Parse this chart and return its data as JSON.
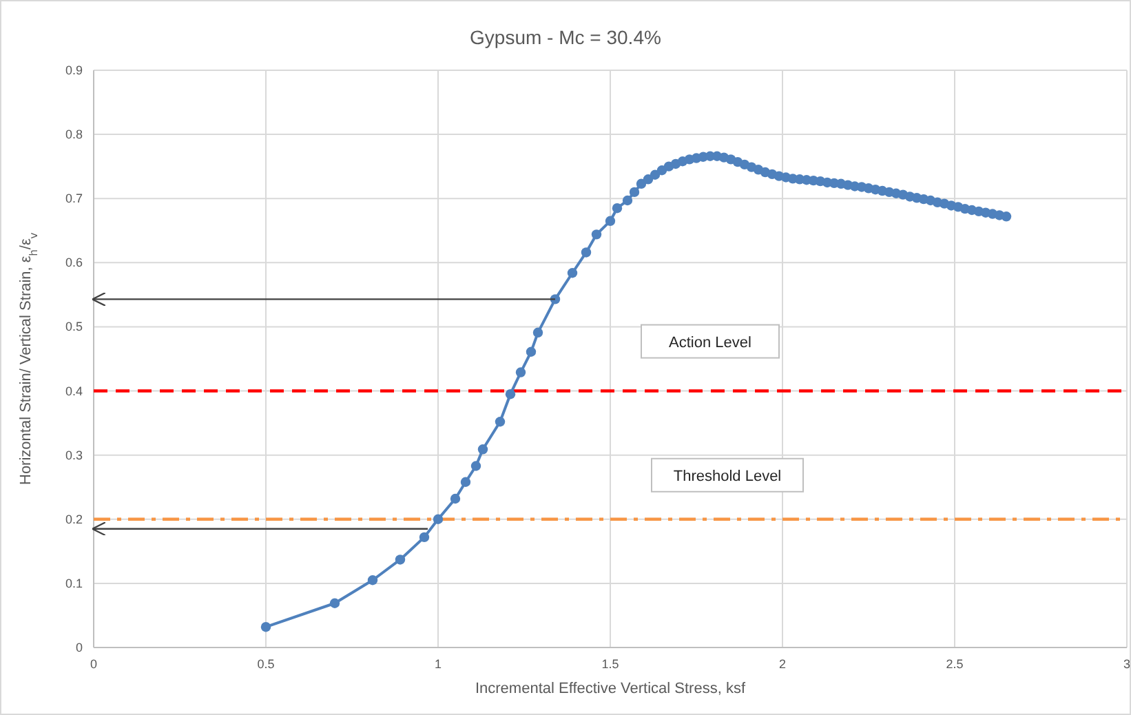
{
  "chart_data": {
    "type": "line",
    "title": "Gypsum - Mc = 30.4%",
    "xlabel": "Incremental Effective Vertical Stress, ksf",
    "ylabel": "Horizontal Strain/ Vertical Strain, ε$_{h}$/ε$_{v}$",
    "xlim": [
      0,
      3
    ],
    "xticks": [
      0,
      0.5,
      1,
      1.5,
      2,
      2.5,
      3
    ],
    "ylim": [
      0,
      0.9
    ],
    "yticks": [
      0,
      0.1,
      0.2,
      0.3,
      0.4,
      0.5,
      0.6,
      0.7,
      0.8,
      0.9
    ],
    "grid": true,
    "marker": "circle",
    "line_style": "solid",
    "series": [
      {
        "color": "#4f81bd",
        "x": [
          0.5,
          0.7,
          0.81,
          0.89,
          0.96,
          1.0,
          1.05,
          1.08,
          1.11,
          1.13,
          1.18,
          1.21,
          1.24,
          1.27,
          1.29,
          1.34,
          1.39,
          1.43,
          1.46,
          1.5,
          1.52,
          1.55,
          1.57,
          1.59,
          1.61,
          1.63,
          1.65,
          1.67,
          1.69,
          1.71,
          1.73,
          1.75,
          1.77,
          1.79,
          1.81,
          1.83,
          1.85,
          1.87,
          1.89,
          1.91,
          1.93,
          1.95,
          1.97,
          1.99,
          2.01,
          2.03,
          2.05,
          2.07,
          2.09,
          2.11,
          2.13,
          2.15,
          2.17,
          2.19,
          2.21,
          2.23,
          2.25,
          2.27,
          2.29,
          2.31,
          2.33,
          2.35,
          2.37,
          2.39,
          2.41,
          2.43,
          2.45,
          2.47,
          2.49,
          2.51,
          2.53,
          2.55,
          2.57,
          2.59,
          2.61,
          2.63,
          2.65
        ],
        "values": [
          0.032,
          0.069,
          0.105,
          0.137,
          0.172,
          0.2,
          0.232,
          0.258,
          0.283,
          0.309,
          0.352,
          0.395,
          0.429,
          0.461,
          0.491,
          0.543,
          0.584,
          0.616,
          0.644,
          0.665,
          0.685,
          0.697,
          0.71,
          0.723,
          0.73,
          0.737,
          0.744,
          0.75,
          0.754,
          0.758,
          0.761,
          0.763,
          0.765,
          0.766,
          0.766,
          0.764,
          0.761,
          0.757,
          0.753,
          0.749,
          0.745,
          0.741,
          0.738,
          0.735,
          0.733,
          0.731,
          0.73,
          0.729,
          0.728,
          0.727,
          0.725,
          0.724,
          0.723,
          0.721,
          0.719,
          0.718,
          0.716,
          0.714,
          0.712,
          0.71,
          0.708,
          0.706,
          0.703,
          0.701,
          0.699,
          0.697,
          0.694,
          0.692,
          0.689,
          0.687,
          0.684,
          0.682,
          0.68,
          0.678,
          0.676,
          0.674,
          0.672
        ]
      },
      {
        "color": "#404040",
        "marker": "none",
        "x": [
          1.34,
          0
        ],
        "values": [
          0.543,
          0.543
        ]
      },
      {
        "color": "#404040",
        "marker": "none",
        "x": [
          0.97,
          0
        ],
        "values": [
          0.185,
          0.185
        ]
      }
    ],
    "ref_lines": [
      {
        "axis": "y",
        "value": 0.4,
        "label": "Action Level",
        "color": "#ff0000",
        "line_style": "dashed"
      },
      {
        "axis": "y",
        "value": 0.2,
        "label": "Threshold Level",
        "color": "#f79646",
        "line_style": "dashdot"
      }
    ]
  }
}
